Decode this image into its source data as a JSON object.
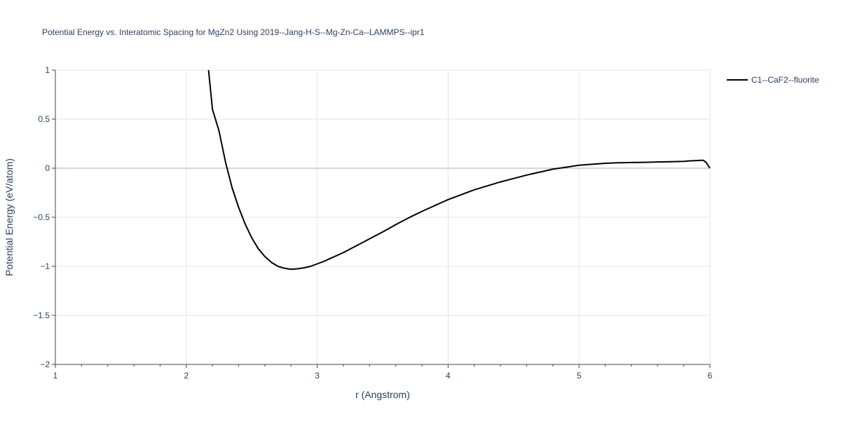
{
  "chart_data": {
    "type": "line",
    "title": "Potential Energy vs. Interatomic Spacing for MgZn2 Using 2019--Jang-H-S--Mg-Zn-Ca--LAMMPS--ipr1",
    "xlabel": "r (Angstrom)",
    "ylabel": "Potential Energy (eV/atom)",
    "xlim": [
      1,
      6
    ],
    "ylim": [
      -2,
      1
    ],
    "x_ticks": [
      1,
      2,
      3,
      4,
      5,
      6
    ],
    "x_tick_labels": [
      "1",
      "2",
      "3",
      "4",
      "5",
      "6"
    ],
    "y_ticks": [
      -2,
      -1.5,
      -1,
      -0.5,
      0,
      0.5,
      1
    ],
    "y_tick_labels": [
      "−2",
      "−1.5",
      "−1",
      "−0.5",
      "0",
      "0.5",
      "1"
    ],
    "grid": true,
    "legend_position": "top-right",
    "series": [
      {
        "name": "C1--CaF2--fluorite",
        "color": "#000000",
        "x": [
          2.17,
          2.2,
          2.25,
          2.3,
          2.35,
          2.4,
          2.45,
          2.5,
          2.55,
          2.6,
          2.65,
          2.7,
          2.75,
          2.8,
          2.85,
          2.9,
          2.95,
          3.0,
          3.05,
          3.1,
          3.2,
          3.3,
          3.4,
          3.5,
          3.6,
          3.7,
          3.8,
          3.9,
          4.0,
          4.1,
          4.2,
          4.3,
          4.4,
          4.5,
          4.6,
          4.7,
          4.8,
          4.9,
          5.0,
          5.1,
          5.2,
          5.3,
          5.4,
          5.5,
          5.6,
          5.7,
          5.8,
          5.85,
          5.9,
          5.93,
          5.95,
          5.97,
          6.0
        ],
        "y": [
          1.0,
          0.6,
          0.38,
          0.06,
          -0.2,
          -0.4,
          -0.57,
          -0.71,
          -0.82,
          -0.9,
          -0.96,
          -1.0,
          -1.02,
          -1.03,
          -1.025,
          -1.015,
          -1.0,
          -0.975,
          -0.95,
          -0.92,
          -0.86,
          -0.79,
          -0.72,
          -0.65,
          -0.575,
          -0.505,
          -0.44,
          -0.38,
          -0.32,
          -0.27,
          -0.22,
          -0.18,
          -0.14,
          -0.105,
          -0.07,
          -0.04,
          -0.01,
          0.01,
          0.03,
          0.04,
          0.05,
          0.055,
          0.058,
          0.06,
          0.063,
          0.066,
          0.07,
          0.075,
          0.078,
          0.08,
          0.08,
          0.06,
          0.0
        ]
      }
    ]
  }
}
